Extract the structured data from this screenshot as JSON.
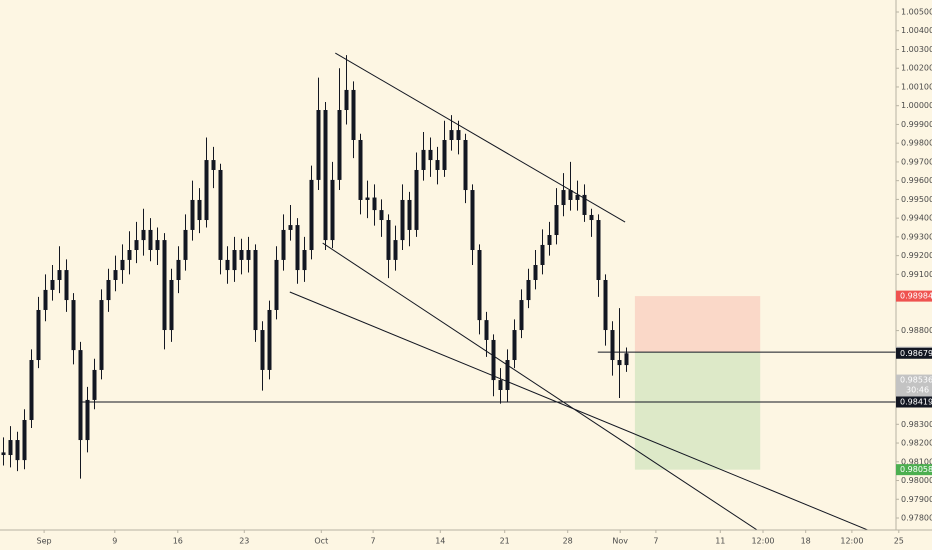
{
  "chart_data": {
    "type": "candlestick",
    "color": "#131722",
    "candles": [
      [
        0.9815,
        0.9823,
        0.9808,
        0.98136
      ],
      [
        0.98136,
        0.9829,
        0.9807,
        0.98216
      ],
      [
        0.98216,
        0.9826,
        0.9805,
        0.98109
      ],
      [
        0.98109,
        0.9838,
        0.9806,
        0.98323
      ],
      [
        0.98323,
        0.987,
        0.9828,
        0.98643
      ],
      [
        0.98643,
        0.9898,
        0.986,
        0.9891
      ],
      [
        0.9891,
        0.991,
        0.9885,
        0.99017
      ],
      [
        0.99017,
        0.9915,
        0.9896,
        0.9907
      ],
      [
        0.9907,
        0.9925,
        0.99,
        0.99123
      ],
      [
        0.99123,
        0.9918,
        0.989,
        0.98963
      ],
      [
        0.98963,
        0.99,
        0.9862,
        0.98696
      ],
      [
        0.98696,
        0.9874,
        0.9801,
        0.98216
      ],
      [
        0.98216,
        0.985,
        0.9815,
        0.9843
      ],
      [
        0.9843,
        0.9865,
        0.9838,
        0.9859
      ],
      [
        0.9859,
        0.9902,
        0.9854,
        0.98963
      ],
      [
        0.98963,
        0.9913,
        0.989,
        0.9907
      ],
      [
        0.9907,
        0.992,
        0.9901,
        0.99123
      ],
      [
        0.99123,
        0.9926,
        0.9905,
        0.99177
      ],
      [
        0.99177,
        0.9933,
        0.991,
        0.9923
      ],
      [
        0.9923,
        0.9938,
        0.9916,
        0.99283
      ],
      [
        0.99283,
        0.9945,
        0.992,
        0.99337
      ],
      [
        0.99337,
        0.994,
        0.9917,
        0.9923
      ],
      [
        0.9923,
        0.9935,
        0.9915,
        0.99283
      ],
      [
        0.99283,
        0.9932,
        0.987,
        0.98803
      ],
      [
        0.98803,
        0.9913,
        0.9874,
        0.9907
      ],
      [
        0.9907,
        0.9925,
        0.99,
        0.99177
      ],
      [
        0.99177,
        0.9942,
        0.9912,
        0.99337
      ],
      [
        0.99337,
        0.996,
        0.9928,
        0.99497
      ],
      [
        0.99497,
        0.9956,
        0.9932,
        0.9939
      ],
      [
        0.9939,
        0.9983,
        0.9935,
        0.9971
      ],
      [
        0.9971,
        0.9978,
        0.9956,
        0.99657
      ],
      [
        0.99657,
        0.9969,
        0.991,
        0.99177
      ],
      [
        0.99177,
        0.9925,
        0.9905,
        0.99123
      ],
      [
        0.99123,
        0.993,
        0.9906,
        0.9923
      ],
      [
        0.9923,
        0.9929,
        0.991,
        0.99177
      ],
      [
        0.99177,
        0.993,
        0.9911,
        0.9923
      ],
      [
        0.9923,
        0.9926,
        0.9874,
        0.98803
      ],
      [
        0.98803,
        0.9885,
        0.9848,
        0.9859
      ],
      [
        0.9859,
        0.9896,
        0.9854,
        0.9891
      ],
      [
        0.9891,
        0.9925,
        0.9886,
        0.99177
      ],
      [
        0.99177,
        0.9942,
        0.9912,
        0.99337
      ],
      [
        0.99337,
        0.9947,
        0.9928,
        0.99363
      ],
      [
        0.99363,
        0.994,
        0.9905,
        0.99123
      ],
      [
        0.99123,
        0.993,
        0.9906,
        0.9923
      ],
      [
        0.9923,
        0.9968,
        0.9918,
        0.99604
      ],
      [
        0.99604,
        1.0015,
        0.9955,
        0.99977
      ],
      [
        0.99977,
        1.0002,
        0.9923,
        0.99283
      ],
      [
        0.99283,
        0.997,
        0.9924,
        0.99604
      ],
      [
        0.99604,
        1.002,
        0.9955,
        0.99977
      ],
      [
        0.99977,
        1.0027,
        0.999,
        1.00084
      ],
      [
        1.00084,
        1.0013,
        0.9972,
        0.99817
      ],
      [
        0.99817,
        0.9985,
        0.9942,
        0.99497
      ],
      [
        0.99497,
        0.996,
        0.994,
        0.9951
      ],
      [
        0.9951,
        0.9958,
        0.9936,
        0.99443
      ],
      [
        0.99443,
        0.995,
        0.993,
        0.9939
      ],
      [
        0.9939,
        0.9942,
        0.9908,
        0.99177
      ],
      [
        0.99177,
        0.9936,
        0.9912,
        0.99283
      ],
      [
        0.99283,
        0.9958,
        0.9923,
        0.99497
      ],
      [
        0.99497,
        0.9954,
        0.9925,
        0.99337
      ],
      [
        0.99337,
        0.9975,
        0.993,
        0.99657
      ],
      [
        0.99657,
        0.9986,
        0.996,
        0.99764
      ],
      [
        0.99764,
        0.9983,
        0.9962,
        0.9971
      ],
      [
        0.9971,
        0.9978,
        0.9958,
        0.99657
      ],
      [
        0.99657,
        0.9992,
        0.9962,
        0.99817
      ],
      [
        0.99817,
        0.9995,
        0.9976,
        0.9987
      ],
      [
        0.9987,
        0.9992,
        0.9974,
        0.99817
      ],
      [
        0.99817,
        0.9985,
        0.9948,
        0.9955
      ],
      [
        0.9955,
        0.9958,
        0.9915,
        0.9923
      ],
      [
        0.9923,
        0.9926,
        0.9878,
        0.98856
      ],
      [
        0.98856,
        0.989,
        0.9866,
        0.9875
      ],
      [
        0.9875,
        0.9878,
        0.9845,
        0.98536
      ],
      [
        0.98536,
        0.986,
        0.9841,
        0.98483
      ],
      [
        0.98483,
        0.987,
        0.9842,
        0.98643
      ],
      [
        0.98643,
        0.9886,
        0.986,
        0.98803
      ],
      [
        0.98803,
        0.9902,
        0.9876,
        0.98963
      ],
      [
        0.98963,
        0.9913,
        0.9892,
        0.9907
      ],
      [
        0.9907,
        0.9923,
        0.9902,
        0.9915
      ],
      [
        0.9915,
        0.9934,
        0.991,
        0.99257
      ],
      [
        0.99257,
        0.9938,
        0.992,
        0.9931
      ],
      [
        0.9931,
        0.9956,
        0.9926,
        0.9947
      ],
      [
        0.9947,
        0.9964,
        0.9941,
        0.9955
      ],
      [
        0.9955,
        0.997,
        0.9944,
        0.99497
      ],
      [
        0.99497,
        0.996,
        0.9944,
        0.99524
      ],
      [
        0.99524,
        0.9958,
        0.9938,
        0.99417
      ],
      [
        0.99417,
        0.9945,
        0.993,
        0.9939
      ],
      [
        0.9939,
        0.9942,
        0.9898,
        0.9907
      ],
      [
        0.9907,
        0.991,
        0.9872,
        0.98803
      ],
      [
        0.98803,
        0.9885,
        0.9856,
        0.98643
      ],
      [
        0.98643,
        0.9892,
        0.9844,
        0.98616
      ],
      [
        0.98616,
        0.9871,
        0.9858,
        0.98679
      ]
    ],
    "xlim": [
      0,
      128
    ],
    "xticks": [
      {
        "value": 6.3,
        "label": "Sep"
      },
      {
        "value": 16.4,
        "label": "9"
      },
      {
        "value": 25.4,
        "label": "16"
      },
      {
        "value": 34.9,
        "label": "23"
      },
      {
        "value": 45.9,
        "label": "Oct"
      },
      {
        "value": 53.3,
        "label": "7"
      },
      {
        "value": 62.9,
        "label": "14"
      },
      {
        "value": 72.1,
        "label": "21"
      },
      {
        "value": 81.1,
        "label": "28"
      },
      {
        "value": 88.6,
        "label": "Nov"
      },
      {
        "value": 93.7,
        "label": "7"
      },
      {
        "value": 102.9,
        "label": "11"
      },
      {
        "value": 109,
        "label": "12:00"
      },
      {
        "value": 115.1,
        "label": "18"
      },
      {
        "value": 121.7,
        "label": "12:00"
      },
      {
        "value": 128.4,
        "label": "25"
      }
    ],
    "ylim": [
      0.97736,
      1.00564
    ],
    "yticks": [
      {
        "value": 1.005,
        "label": "1.00500"
      },
      {
        "value": 1.004,
        "label": "1.00400"
      },
      {
        "value": 1.003,
        "label": "1.00300"
      },
      {
        "value": 1.002,
        "label": "1.00200"
      },
      {
        "value": 1.001,
        "label": "1.00100"
      },
      {
        "value": 1.0,
        "label": "1.00000"
      },
      {
        "value": 0.999,
        "label": "0.99900"
      },
      {
        "value": 0.998,
        "label": "0.99800"
      },
      {
        "value": 0.997,
        "label": "0.99700"
      },
      {
        "value": 0.996,
        "label": "0.99600"
      },
      {
        "value": 0.995,
        "label": "0.99500"
      },
      {
        "value": 0.994,
        "label": "0.99400"
      },
      {
        "value": 0.993,
        "label": "0.99300"
      },
      {
        "value": 0.992,
        "label": "0.99200"
      },
      {
        "value": 0.991,
        "label": "0.99100"
      },
      {
        "value": 0.988,
        "label": "0.98800"
      },
      {
        "value": 0.983,
        "label": "0.98300"
      },
      {
        "value": 0.982,
        "label": "0.98200"
      },
      {
        "value": 0.981,
        "label": "0.98100"
      },
      {
        "value": 0.98,
        "label": "0.98000"
      },
      {
        "value": 0.979,
        "label": "0.97900"
      },
      {
        "value": 0.978,
        "label": "0.97800"
      }
    ],
    "line_color": "#131722",
    "lines": [
      {
        "x": [
          47.9,
          89.3
        ],
        "y": [
          1.00281,
          0.99379
        ]
      },
      {
        "x": [
          46.1,
          108.6
        ],
        "y": [
          0.99267,
          0.97725
        ]
      },
      {
        "x": [
          41.4,
          125
        ],
        "y": [
          0.99006,
          0.9772
        ]
      }
    ],
    "hlines": [
      {
        "x": 11.4,
        "y": 0.98419
      },
      {
        "x": 85.4,
        "y": 0.98685
      }
    ],
    "position": {
      "x": [
        90.7,
        108.6
      ],
      "stop": 0.98984,
      "entry": 0.98685,
      "target": 0.98058,
      "loss_color": "#ef5350",
      "profit_color": "#4caf50"
    },
    "price_labels": [
      {
        "value": 0.98984,
        "color": "#ef5350",
        "text_color": "#ffffff"
      },
      {
        "value": 0.98685,
        "color": "#c3c3c3",
        "text_color": "#131722"
      },
      {
        "value": 0.98679,
        "color": "#131722",
        "text_color": "#ffffff"
      },
      {
        "value": 0.98536,
        "color": "#c3c3c3",
        "text_color": "#ffffff",
        "countdown": "30:46"
      },
      {
        "value": 0.98419,
        "color": "#131722",
        "text_color": "#ffffff"
      },
      {
        "value": 0.98058,
        "color": "#4caf50",
        "text_color": "#ffffff"
      }
    ]
  }
}
